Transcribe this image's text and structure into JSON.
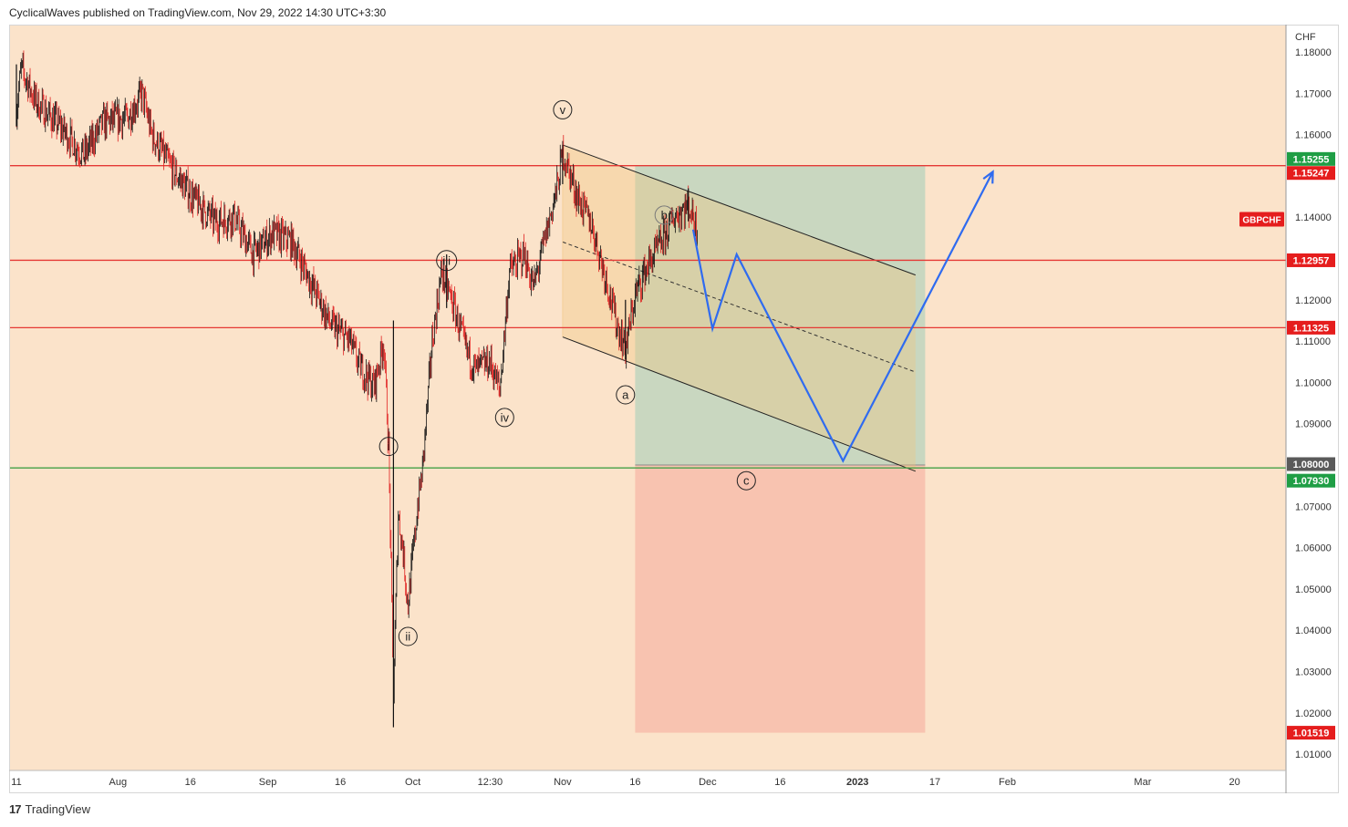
{
  "header": {
    "text": "CyclicalWaves published on TradingView.com, Nov 29, 2022 14:30 UTC+3:30"
  },
  "footer": {
    "logo": "17",
    "brand": "TradingView"
  },
  "colors": {
    "background": "#fbe3ca",
    "up_candle": "#111111",
    "down_candle": "#e02020",
    "red_level": "#e53935",
    "green_level": "#43a047",
    "projection": "#2f6bf0",
    "target_zone": "#c6d6bf",
    "stop_zone": "#f8c3b0",
    "symbol_tag": "#e51d1d"
  },
  "chart_data": {
    "type": "candlestick",
    "symbol": "GBPCHF",
    "currency": "CHF",
    "y_ticks": [
      "1.18000",
      "1.17000",
      "1.16000",
      "1.15000",
      "1.14000",
      "1.13000",
      "1.12000",
      "1.11000",
      "1.10000",
      "1.09000",
      "1.08000",
      "1.07000",
      "1.06000",
      "1.05000",
      "1.04000",
      "1.03000",
      "1.02000",
      "1.01000"
    ],
    "ylim": [
      1.0035,
      1.1845
    ],
    "x_ticks": [
      {
        "label": "11",
        "date": "2022-07-11"
      },
      {
        "label": "Aug",
        "date": "2022-08-01"
      },
      {
        "label": "16",
        "date": "2022-08-16"
      },
      {
        "label": "Sep",
        "date": "2022-09-01"
      },
      {
        "label": "16",
        "date": "2022-09-16"
      },
      {
        "label": "Oct",
        "date": "2022-10-01"
      },
      {
        "label": "12:30",
        "date": "2022-10-17"
      },
      {
        "label": "Nov",
        "date": "2022-11-01"
      },
      {
        "label": "16",
        "date": "2022-11-16"
      },
      {
        "label": "Dec",
        "date": "2022-12-01"
      },
      {
        "label": "16",
        "date": "2022-12-16"
      },
      {
        "label": "2023",
        "date": "2023-01-01"
      },
      {
        "label": "17",
        "date": "2023-01-17"
      },
      {
        "label": "Feb",
        "date": "2023-02-01"
      },
      {
        "label": "Mar",
        "date": "2023-03-01"
      },
      {
        "label": "20",
        "date": "2023-03-20"
      }
    ],
    "price_path": [
      [
        "2022-07-11",
        1.166
      ],
      [
        "2022-07-12",
        1.176
      ],
      [
        "2022-07-15",
        1.168
      ],
      [
        "2022-07-20",
        1.162
      ],
      [
        "2022-07-25",
        1.155
      ],
      [
        "2022-07-29",
        1.163
      ],
      [
        "2022-08-03",
        1.164
      ],
      [
        "2022-08-06",
        1.17
      ],
      [
        "2022-08-08",
        1.16
      ],
      [
        "2022-08-12",
        1.152
      ],
      [
        "2022-08-17",
        1.144
      ],
      [
        "2022-08-21",
        1.139
      ],
      [
        "2022-08-25",
        1.14
      ],
      [
        "2022-08-29",
        1.131
      ],
      [
        "2022-09-02",
        1.136
      ],
      [
        "2022-09-06",
        1.134
      ],
      [
        "2022-09-10",
        1.124
      ],
      [
        "2022-09-14",
        1.114
      ],
      [
        "2022-09-18",
        1.11
      ],
      [
        "2022-09-20",
        1.104
      ],
      [
        "2022-09-23",
        1.099
      ],
      [
        "2022-09-25",
        1.11
      ],
      [
        "2022-09-26",
        1.084
      ],
      [
        "2022-09-27",
        1.025
      ],
      [
        "2022-09-28",
        1.068
      ],
      [
        "2022-09-29",
        1.059
      ],
      [
        "2022-09-30",
        1.046
      ],
      [
        "2022-10-02",
        1.07
      ],
      [
        "2022-10-03",
        1.079
      ],
      [
        "2022-10-05",
        1.11
      ],
      [
        "2022-10-07",
        1.127
      ],
      [
        "2022-10-09",
        1.12
      ],
      [
        "2022-10-12",
        1.108
      ],
      [
        "2022-10-14",
        1.103
      ],
      [
        "2022-10-17",
        1.105
      ],
      [
        "2022-10-19",
        1.098
      ],
      [
        "2022-10-21",
        1.127
      ],
      [
        "2022-10-24",
        1.131
      ],
      [
        "2022-10-26",
        1.123
      ],
      [
        "2022-10-29",
        1.138
      ],
      [
        "2022-10-31",
        1.148
      ],
      [
        "2022-11-01",
        1.156
      ],
      [
        "2022-11-04",
        1.145
      ],
      [
        "2022-11-07",
        1.138
      ],
      [
        "2022-11-10",
        1.125
      ],
      [
        "2022-11-12",
        1.115
      ],
      [
        "2022-11-14",
        1.108
      ],
      [
        "2022-11-16",
        1.121
      ],
      [
        "2022-11-18",
        1.127
      ],
      [
        "2022-11-21",
        1.133
      ],
      [
        "2022-11-24",
        1.14
      ],
      [
        "2022-11-27",
        1.143
      ],
      [
        "2022-11-29",
        1.137
      ]
    ],
    "swing_marks": [
      {
        "date": "2022-07-11",
        "high": 1.177,
        "low": 1.162
      },
      {
        "date": "2022-09-27",
        "high": 1.115,
        "low": 1.0165
      },
      {
        "date": "2022-10-08",
        "high": 1.131,
        "low": 1.118
      },
      {
        "date": "2022-11-01",
        "high": 1.1575,
        "low": 1.148
      },
      {
        "date": "2022-11-14",
        "high": 1.12,
        "low": 1.1055
      },
      {
        "date": "2022-11-27",
        "high": 1.147,
        "low": 1.139
      }
    ],
    "levels": [
      {
        "label": "1.15247",
        "value": 1.15247,
        "color": "red"
      },
      {
        "label": "1.12957",
        "value": 1.12957,
        "color": "red"
      },
      {
        "label": "1.11325",
        "value": 1.11325,
        "color": "red"
      },
      {
        "label": "1.07930",
        "value": 1.0793,
        "color": "green"
      }
    ],
    "price_tags": [
      {
        "label": "1.15255",
        "value": 1.15255,
        "color": "green"
      },
      {
        "label": "1.15247",
        "value": 1.15247,
        "color": "red"
      },
      {
        "label": "1.12957",
        "value": 1.12957,
        "color": "red"
      },
      {
        "label": "1.11325",
        "value": 1.11325,
        "color": "red"
      },
      {
        "label": "1.08000",
        "value": 1.08,
        "color": "gray"
      },
      {
        "label": "1.07930",
        "value": 1.0793,
        "color": "green"
      },
      {
        "label": "1.01519",
        "value": 1.01519,
        "color": "red"
      }
    ],
    "position": {
      "entry": 1.08,
      "target": 1.15247,
      "stop": 1.01519,
      "start": "2022-11-16",
      "end": "2023-01-15"
    },
    "channel": {
      "upper": [
        [
          "2022-11-01",
          1.1575
        ],
        [
          "2023-01-13",
          1.126
        ]
      ],
      "lower": [
        [
          "2022-11-01",
          1.111
        ],
        [
          "2023-01-13",
          1.0785
        ]
      ],
      "mid": [
        [
          "2022-11-01",
          1.134
        ],
        [
          "2023-01-13",
          1.1025
        ]
      ],
      "shade_end": "2022-11-16"
    },
    "wave_labels": [
      {
        "text": "i",
        "date": "2022-09-26",
        "value": 1.0845
      },
      {
        "text": "ii",
        "date": "2022-09-30",
        "value": 1.0385
      },
      {
        "text": "iii",
        "date": "2022-10-08",
        "value": 1.1295
      },
      {
        "text": "iv",
        "date": "2022-10-20",
        "value": 1.0915
      },
      {
        "text": "v",
        "date": "2022-11-01",
        "value": 1.166
      },
      {
        "text": "a",
        "date": "2022-11-14",
        "value": 1.097
      },
      {
        "text": "b",
        "date": "2022-11-22",
        "value": 1.1405
      },
      {
        "text": "c",
        "date": "2022-12-09",
        "value": 1.0762
      }
    ],
    "projection": [
      [
        "2022-11-28",
        1.137
      ],
      [
        "2022-12-02",
        1.113
      ],
      [
        "2022-12-07",
        1.131
      ],
      [
        "2022-12-29",
        1.081
      ],
      [
        "2023-01-29",
        1.151
      ]
    ]
  }
}
